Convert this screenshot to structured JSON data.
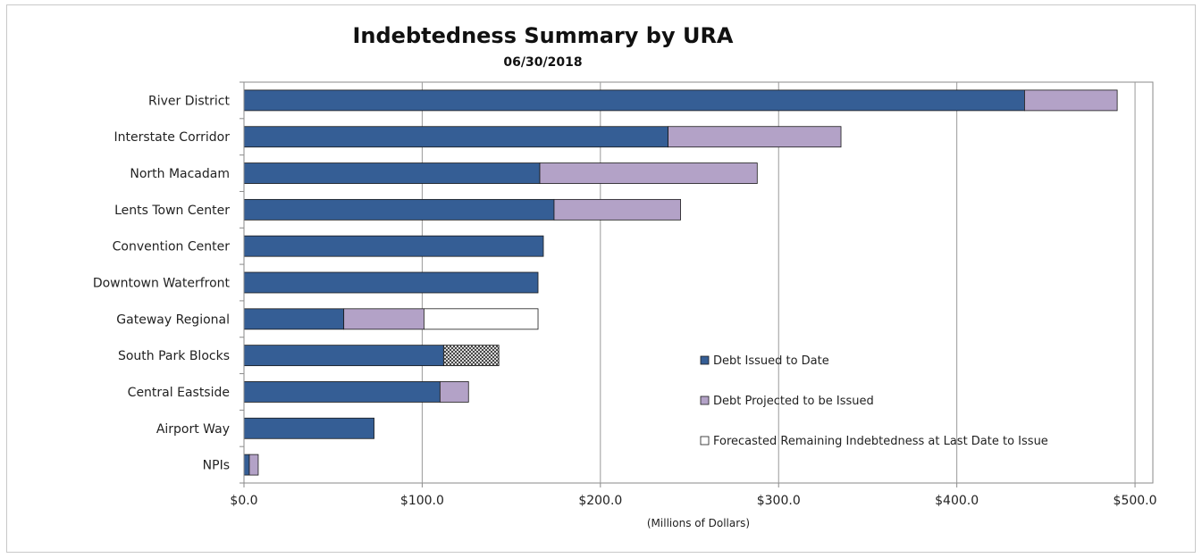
{
  "chart_data": {
    "type": "bar",
    "orientation": "horizontal",
    "stacked": true,
    "title": "Indebtedness Summary by URA",
    "subtitle": "06/30/2018",
    "xlabel": "(Millions of Dollars)",
    "ylabel": "",
    "xlim": [
      0,
      510
    ],
    "xticks": [
      0,
      100,
      200,
      300,
      400,
      500
    ],
    "xtick_labels": [
      "$0.0",
      "$100.0",
      "$200.0",
      "$300.0",
      "$400.0",
      "$500.0"
    ],
    "grid": "vertical",
    "legend_position": "lower-right inside plot",
    "categories": [
      "River District",
      "Interstate Corridor",
      "North Macadam",
      "Lents Town Center",
      "Convention Center",
      "Downtown Waterfront",
      "Gateway Regional",
      "South Park Blocks",
      "Central Eastside",
      "Airport Way",
      "NPIs"
    ],
    "series": [
      {
        "name": "Debt Issued to Date",
        "color": "#355e95",
        "pattern": "solid",
        "values": [
          438,
          238,
          166,
          174,
          168,
          165,
          56,
          112,
          110,
          73,
          3
        ]
      },
      {
        "name": "Debt Projected to be Issued",
        "color": "#b3a2c7",
        "pattern": "solid",
        "values": [
          52,
          97,
          122,
          71,
          0,
          0,
          45,
          0,
          16,
          0,
          5
        ]
      },
      {
        "name": "Forecasted Remaining Indebtedness at Last Date to Issue",
        "color": "#ffffff",
        "pattern": "solid",
        "values": [
          0,
          0,
          0,
          0,
          0,
          0,
          64,
          0,
          0,
          0,
          0
        ]
      },
      {
        "name": "",
        "color": "#ffffff",
        "pattern": "crosshatch",
        "values": [
          0,
          0,
          0,
          0,
          0,
          0,
          0,
          31,
          0,
          0,
          0
        ]
      }
    ]
  }
}
